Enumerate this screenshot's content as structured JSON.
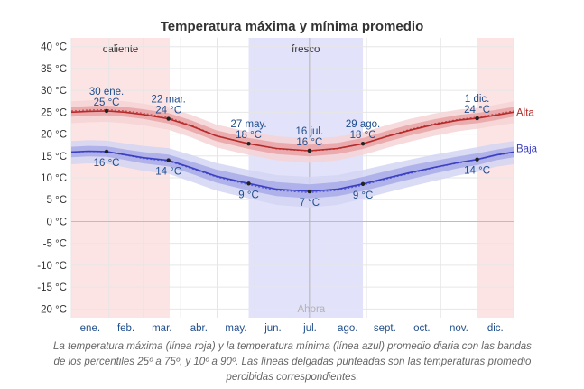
{
  "title": "Temperatura máxima y mínima promedio",
  "caption": "La temperatura máxima (línea roja) y la temperatura mínima (línea azul) promedio diaria con las bandas de los percentiles 25º a 75º, y 10º a 90º. Las líneas delgadas punteadas son las temperaturas promedio percibidas correspondientes.",
  "colors": {
    "high_line": "#b52a2a",
    "high_band_inner": "#e9a3a6",
    "high_band_outer": "#f6d4d6",
    "low_line": "#3b3fc2",
    "low_band_inner": "#a8abe8",
    "low_band_outer": "#d3d5f3",
    "warm_season": "#fde4e4",
    "cool_season": "#e2e2fb",
    "annotation_text": "#1f4e8c"
  },
  "chart_data": {
    "type": "line",
    "title": "Temperatura máxima y mínima promedio",
    "xlabel": "",
    "ylabel": "",
    "x_unit": "day_of_year",
    "x_range": [
      1,
      365
    ],
    "ylim": [
      -22,
      42
    ],
    "y_ticks": [
      40,
      35,
      30,
      25,
      20,
      15,
      10,
      5,
      0,
      -5,
      -10,
      -15,
      -20
    ],
    "y_tick_labels": [
      "40 °C",
      "35 °C",
      "30 °C",
      "25 °C",
      "20 °C",
      "15 °C",
      "10 °C",
      "5 °C",
      "0 °C",
      "-5 °C",
      "-10 °C",
      "-15 °C",
      "-20 °C"
    ],
    "month_labels": [
      "ene.",
      "feb.",
      "mar.",
      "abr.",
      "may.",
      "jun.",
      "jul.",
      "ago.",
      "sept.",
      "oct.",
      "nov.",
      "dic."
    ],
    "grid": true,
    "seasons": [
      {
        "label": "caliente",
        "start_day": 1,
        "end_day": 82
      },
      {
        "label": "fresco",
        "start_day": 147,
        "end_day": 241
      },
      {
        "label": "",
        "start_day": 335,
        "end_day": 365
      }
    ],
    "now_marker": {
      "label": "Ahora",
      "day": 197
    },
    "series": [
      {
        "name": "Alta",
        "days": [
          1,
          15,
          30,
          45,
          60,
          81,
          100,
          120,
          147,
          170,
          197,
          220,
          241,
          260,
          280,
          300,
          320,
          335,
          350,
          365
        ],
        "values": [
          25.0,
          25.2,
          25.3,
          25.0,
          24.5,
          23.5,
          21.8,
          19.6,
          17.8,
          16.7,
          16.2,
          16.7,
          17.8,
          19.4,
          20.9,
          22.2,
          23.2,
          23.6,
          24.3,
          25.0
        ],
        "p25_75": [
          [
            24.0,
            26.2
          ],
          [
            24.2,
            26.4
          ],
          [
            24.3,
            26.5
          ],
          [
            24.0,
            26.2
          ],
          [
            23.5,
            25.7
          ],
          [
            22.4,
            24.8
          ],
          [
            20.6,
            23.1
          ],
          [
            18.4,
            20.9
          ],
          [
            16.6,
            19.1
          ],
          [
            15.4,
            18.1
          ],
          [
            14.9,
            17.6
          ],
          [
            15.4,
            18.0
          ],
          [
            16.6,
            19.1
          ],
          [
            18.2,
            20.7
          ],
          [
            19.7,
            22.2
          ],
          [
            21.0,
            23.4
          ],
          [
            22.1,
            24.4
          ],
          [
            22.5,
            24.8
          ],
          [
            23.2,
            25.5
          ],
          [
            24.0,
            26.2
          ]
        ],
        "p10_90": [
          [
            22.5,
            27.5
          ],
          [
            22.7,
            27.7
          ],
          [
            22.8,
            27.8
          ],
          [
            22.5,
            27.5
          ],
          [
            22.0,
            27.0
          ],
          [
            21.0,
            26.0
          ],
          [
            19.2,
            24.4
          ],
          [
            17.0,
            22.2
          ],
          [
            15.2,
            20.5
          ],
          [
            14.0,
            19.5
          ],
          [
            13.4,
            19.0
          ],
          [
            14.0,
            19.4
          ],
          [
            15.2,
            20.4
          ],
          [
            16.8,
            22.0
          ],
          [
            18.3,
            23.5
          ],
          [
            19.6,
            24.7
          ],
          [
            20.7,
            25.6
          ],
          [
            21.2,
            26.0
          ],
          [
            21.9,
            26.7
          ],
          [
            22.5,
            27.5
          ]
        ],
        "feels_like": [
          25.3,
          25.5,
          25.6,
          25.3,
          24.8,
          23.8,
          22.0,
          19.7,
          17.8,
          16.6,
          16.1,
          16.6,
          17.8,
          19.5,
          21.1,
          22.4,
          23.4,
          23.9,
          24.6,
          25.3
        ]
      },
      {
        "name": "Baja",
        "days": [
          1,
          15,
          30,
          45,
          60,
          81,
          100,
          120,
          147,
          170,
          197,
          220,
          241,
          260,
          280,
          300,
          320,
          335,
          350,
          365
        ],
        "values": [
          15.9,
          16.1,
          16.0,
          15.3,
          14.6,
          14.0,
          12.3,
          10.4,
          8.7,
          7.4,
          6.9,
          7.4,
          8.6,
          9.9,
          11.2,
          12.4,
          13.5,
          14.2,
          15.2,
          15.9
        ],
        "p25_75": [
          [
            14.7,
            17.1
          ],
          [
            14.9,
            17.3
          ],
          [
            14.8,
            17.2
          ],
          [
            14.1,
            16.5
          ],
          [
            13.3,
            15.9
          ],
          [
            12.6,
            15.3
          ],
          [
            10.9,
            13.7
          ],
          [
            8.9,
            11.9
          ],
          [
            7.1,
            10.3
          ],
          [
            5.8,
            9.0
          ],
          [
            5.3,
            8.5
          ],
          [
            5.8,
            9.0
          ],
          [
            7.0,
            10.2
          ],
          [
            8.3,
            11.5
          ],
          [
            9.7,
            12.8
          ],
          [
            11.0,
            13.9
          ],
          [
            12.2,
            14.9
          ],
          [
            12.9,
            15.6
          ],
          [
            14.0,
            16.4
          ],
          [
            14.7,
            17.1
          ]
        ],
        "p10_90": [
          [
            13.1,
            18.4
          ],
          [
            13.3,
            18.6
          ],
          [
            13.2,
            18.5
          ],
          [
            12.4,
            17.9
          ],
          [
            11.6,
            17.3
          ],
          [
            10.9,
            16.8
          ],
          [
            9.1,
            15.2
          ],
          [
            7.1,
            13.4
          ],
          [
            5.3,
            11.8
          ],
          [
            3.8,
            10.6
          ],
          [
            3.2,
            10.2
          ],
          [
            3.8,
            10.6
          ],
          [
            5.2,
            11.8
          ],
          [
            6.6,
            13.0
          ],
          [
            8.0,
            14.2
          ],
          [
            9.3,
            15.3
          ],
          [
            10.6,
            16.3
          ],
          [
            11.3,
            17.0
          ],
          [
            12.5,
            17.8
          ],
          [
            13.1,
            18.4
          ]
        ],
        "feels_like": [
          15.8,
          16.0,
          15.9,
          15.2,
          14.4,
          13.8,
          12.1,
          10.2,
          8.4,
          7.1,
          6.6,
          7.1,
          8.3,
          9.7,
          11.0,
          12.3,
          13.4,
          14.1,
          15.1,
          15.8
        ]
      }
    ],
    "annotations": [
      {
        "series": "Alta",
        "day": 30,
        "value": 25.3,
        "date": "30 ene.",
        "label": "25 °C"
      },
      {
        "series": "Alta",
        "day": 81,
        "value": 23.5,
        "date": "22 mar.",
        "label": "24 °C"
      },
      {
        "series": "Alta",
        "day": 147,
        "value": 17.8,
        "date": "27 may.",
        "label": "18 °C"
      },
      {
        "series": "Alta",
        "day": 197,
        "value": 16.2,
        "date": "16 jul.",
        "label": "16 °C"
      },
      {
        "series": "Alta",
        "day": 241,
        "value": 17.8,
        "date": "29 ago.",
        "label": "18 °C"
      },
      {
        "series": "Alta",
        "day": 335,
        "value": 23.6,
        "date": "1 dic.",
        "label": "24 °C"
      },
      {
        "series": "Baja",
        "day": 30,
        "value": 16.0,
        "date": "",
        "label": "16 °C"
      },
      {
        "series": "Baja",
        "day": 81,
        "value": 14.0,
        "date": "",
        "label": "14 °C"
      },
      {
        "series": "Baja",
        "day": 147,
        "value": 8.7,
        "date": "",
        "label": "9 °C"
      },
      {
        "series": "Baja",
        "day": 197,
        "value": 6.9,
        "date": "",
        "label": "7 °C"
      },
      {
        "series": "Baja",
        "day": 241,
        "value": 8.6,
        "date": "",
        "label": "9 °C"
      },
      {
        "series": "Baja",
        "day": 335,
        "value": 14.2,
        "date": "",
        "label": "14 °C"
      }
    ]
  }
}
